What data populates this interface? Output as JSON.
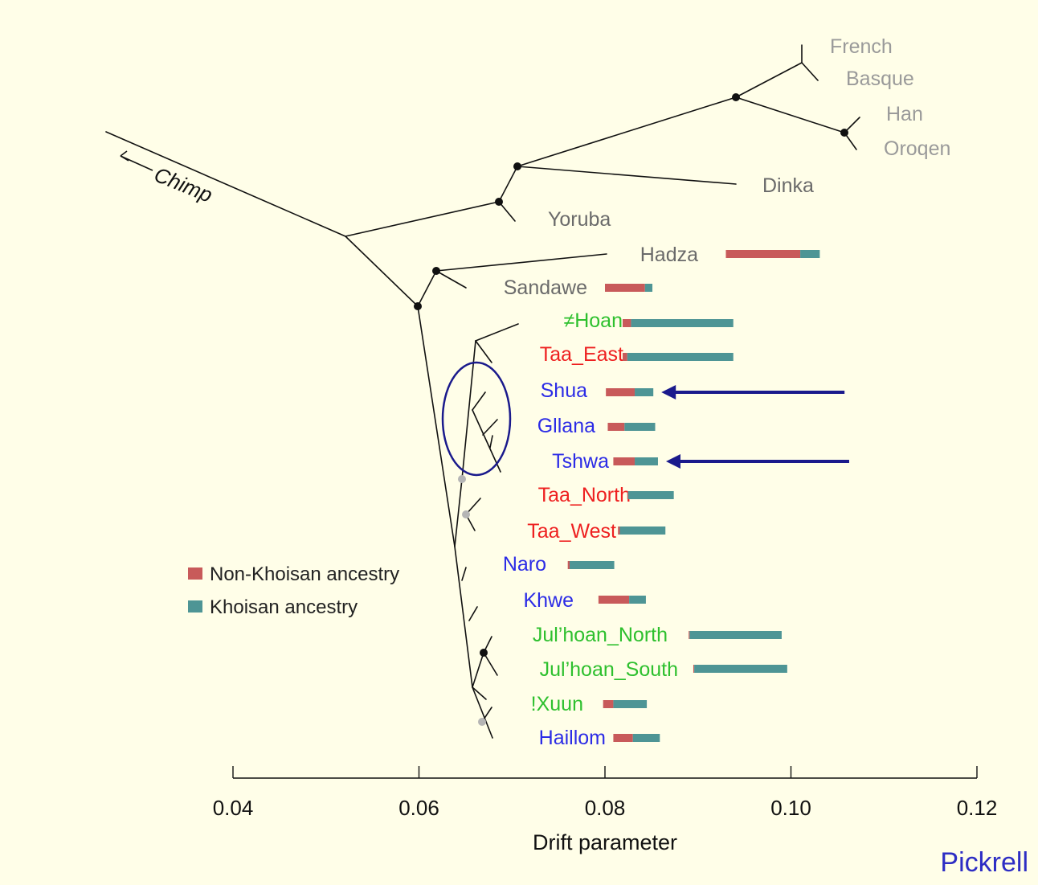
{
  "figure": {
    "outgroup_label": "Chimp",
    "credit": "Pickrell",
    "colors": {
      "background": "#fffee8",
      "branch": "#111111",
      "node_major": "#111111",
      "node_minor": "#b5b5b5",
      "non_khoisan": "#c85a5a",
      "khoisan": "#4e9595",
      "outgroup_label": "#9a9a9a",
      "african_label": "#6a6a6a",
      "group_green": "#2ec02e",
      "group_red": "#ee2020",
      "group_blue": "#2c2ce6",
      "highlight": "#1a1a8c"
    },
    "legend": [
      {
        "label": "Non-Khoisan ancestry",
        "color_key": "non_khoisan"
      },
      {
        "label": "Khoisan ancestry",
        "color_key": "khoisan"
      }
    ]
  },
  "chart_data": {
    "type": "tree",
    "xlabel": "Drift parameter",
    "xlim": [
      0.04,
      0.12
    ],
    "xticks": [
      "0.04",
      "0.06",
      "0.08",
      "0.10",
      "0.12"
    ],
    "populations": [
      {
        "name": "French",
        "color_key": "outgroup_label"
      },
      {
        "name": "Basque",
        "color_key": "outgroup_label"
      },
      {
        "name": "Han",
        "color_key": "outgroup_label"
      },
      {
        "name": "Oroqen",
        "color_key": "outgroup_label"
      },
      {
        "name": "Dinka",
        "color_key": "african_label"
      },
      {
        "name": "Yoruba",
        "color_key": "african_label"
      },
      {
        "name": "Hadza",
        "color_key": "african_label",
        "ancestry": {
          "start": 0.093,
          "split": 0.101,
          "end": 0.1031
        }
      },
      {
        "name": "Sandawe",
        "color_key": "african_label",
        "ancestry": {
          "start": 0.08,
          "split": 0.0843,
          "end": 0.0851
        }
      },
      {
        "name": "≠Hoan",
        "color_key": "group_green",
        "ancestry": {
          "start": 0.0819,
          "split": 0.0828,
          "end": 0.0938
        }
      },
      {
        "name": "Taa_East",
        "color_key": "group_red",
        "ancestry": {
          "start": 0.0819,
          "split": 0.0824,
          "end": 0.0938
        }
      },
      {
        "name": "Shua",
        "color_key": "group_blue",
        "ancestry": {
          "start": 0.0801,
          "split": 0.0832,
          "end": 0.0852
        },
        "highlighted": true
      },
      {
        "name": "Gllana",
        "color_key": "group_blue",
        "ancestry": {
          "start": 0.0803,
          "split": 0.0821,
          "end": 0.0854
        }
      },
      {
        "name": "Tshwa",
        "color_key": "group_blue",
        "ancestry": {
          "start": 0.0809,
          "split": 0.0832,
          "end": 0.0857
        },
        "highlighted": true
      },
      {
        "name": "Taa_North",
        "color_key": "group_red",
        "ancestry": {
          "start": 0.0824,
          "split": 0.0825,
          "end": 0.0874
        }
      },
      {
        "name": "Taa_West",
        "color_key": "group_red",
        "ancestry": {
          "start": 0.0814,
          "split": 0.0816,
          "end": 0.0865
        }
      },
      {
        "name": "Naro",
        "color_key": "group_blue",
        "ancestry": {
          "start": 0.076,
          "split": 0.0762,
          "end": 0.081
        }
      },
      {
        "name": "Khwe",
        "color_key": "group_blue",
        "ancestry": {
          "start": 0.0793,
          "split": 0.0826,
          "end": 0.0844
        }
      },
      {
        "name": "Jul’hoan_North",
        "color_key": "group_green",
        "ancestry": {
          "start": 0.089,
          "split": 0.0891,
          "end": 0.099
        }
      },
      {
        "name": "Jul’hoan_South",
        "color_key": "group_green",
        "ancestry": {
          "start": 0.0895,
          "split": 0.0896,
          "end": 0.0996
        }
      },
      {
        "name": "!Xuun",
        "color_key": "group_green",
        "ancestry": {
          "start": 0.0798,
          "split": 0.0809,
          "end": 0.0845
        }
      },
      {
        "name": "Haillom",
        "color_key": "group_blue",
        "ancestry": {
          "start": 0.0809,
          "split": 0.083,
          "end": 0.0859
        }
      }
    ]
  }
}
